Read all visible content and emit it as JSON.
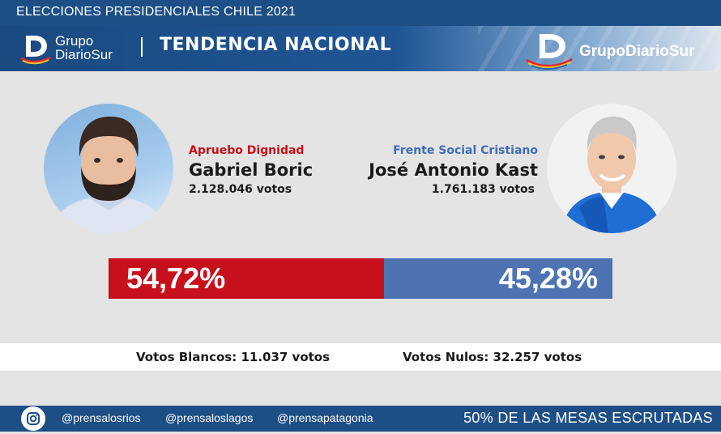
{
  "top_bar": {
    "title": "ELECCIONES PRESIDENCIALES CHILE 2021"
  },
  "header": {
    "logo_left_line1": "Grupo",
    "logo_left_line2": "DiarioSur",
    "section_title": "TENDENCIA NACIONAL",
    "logo_right": "GrupoDiarioSur"
  },
  "candidates": [
    {
      "party": "Apruebo Dignidad",
      "name": "Gabriel Boric",
      "votes": "2.128.046 votos",
      "percent": "54,72%",
      "share": 54.72,
      "color": "#c8101c",
      "party_color": "#c8101c"
    },
    {
      "party": "Frente Social Cristiano",
      "name": "José Antonio Kast",
      "votes": "1.761.183 votos",
      "percent": "45,28%",
      "share": 45.28,
      "color": "#4e73b3",
      "party_color": "#3f6db5"
    }
  ],
  "totals": {
    "blancos": "Votos Blancos: 11.037 votos",
    "nulos": "Votos Nulos: 32.257 votos"
  },
  "footer": {
    "icon": "instagram-icon",
    "handles": [
      "@prensalosrios",
      "@prensaloslagos",
      "@prensapatagonia"
    ],
    "status": "50% DE LAS MESAS ESCRUTADAS"
  }
}
